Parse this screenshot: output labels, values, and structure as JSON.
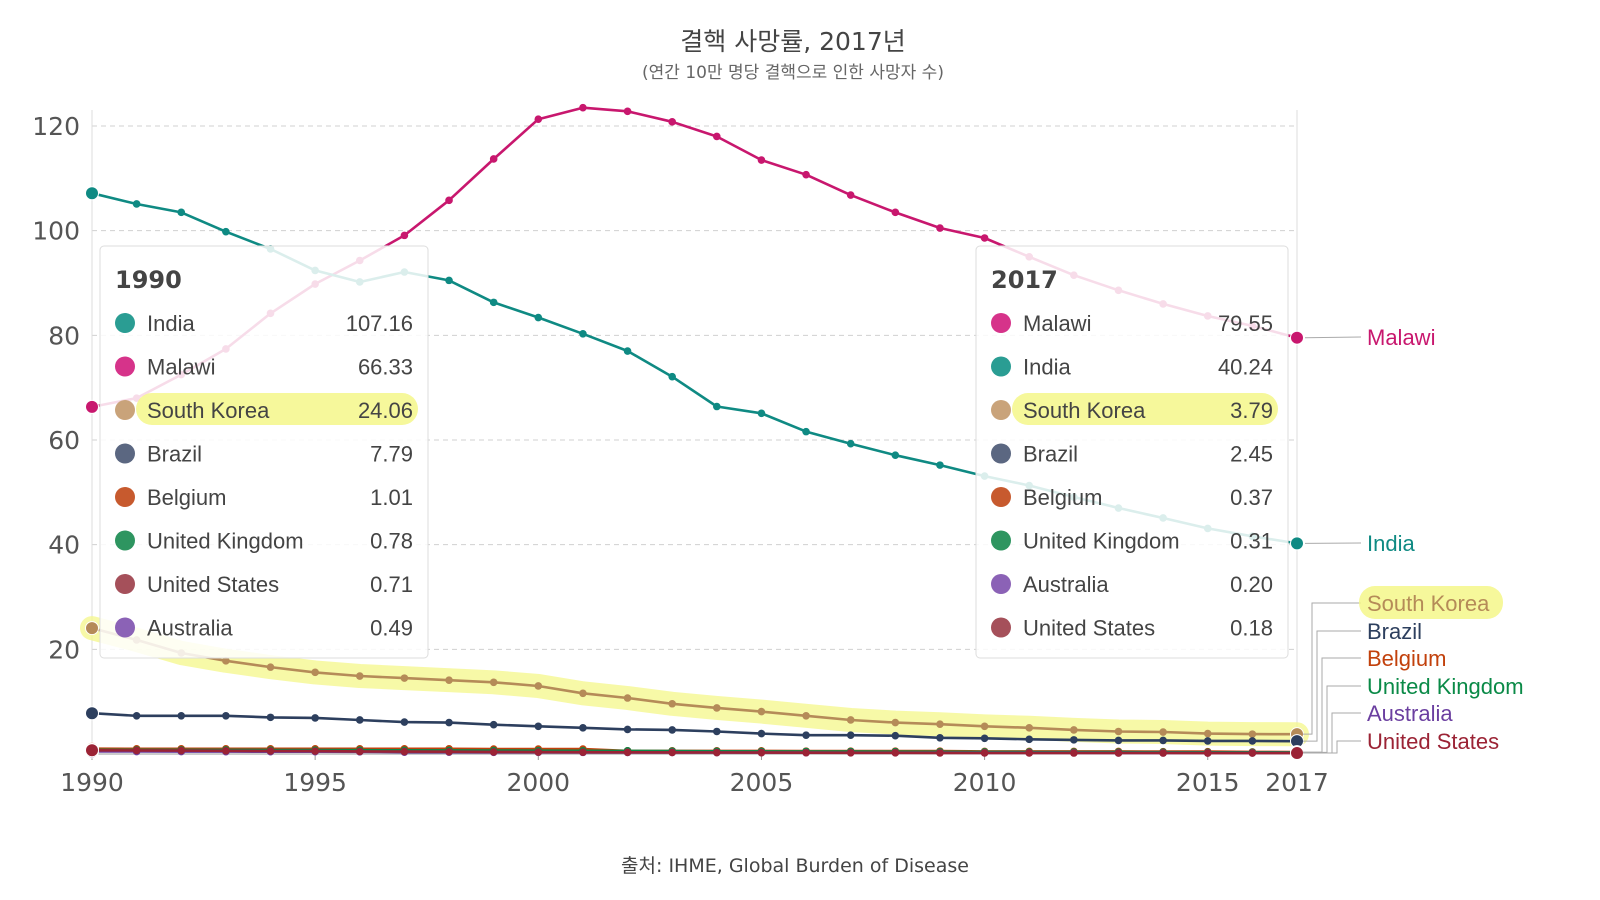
{
  "chart_data": {
    "type": "line",
    "title": "결핵 사망률, 2017년",
    "subtitle": "(연간 10만 명당  결핵으로 인한 사망자 수)",
    "source": "출처: IHME, Global Burden of Disease",
    "x_range": [
      1990,
      2017
    ],
    "y_range": [
      0,
      125
    ],
    "x_ticks": [
      "1990",
      "1995",
      "2000",
      "2005",
      "2010",
      "2015",
      "2017"
    ],
    "y_ticks": [
      "20",
      "40",
      "60",
      "80",
      "100",
      "120"
    ],
    "years": [
      1990,
      1991,
      1992,
      1993,
      1994,
      1995,
      1996,
      1997,
      1998,
      1999,
      2000,
      2001,
      2002,
      2003,
      2004,
      2005,
      2006,
      2007,
      2008,
      2009,
      2010,
      2011,
      2012,
      2013,
      2014,
      2015,
      2016,
      2017
    ],
    "series": [
      {
        "name": "Malawi",
        "color": "#c8176e",
        "label": "Malawi",
        "values": [
          66.33,
          68.0,
          72.5,
          77.4,
          84.2,
          89.8,
          94.3,
          99.1,
          105.8,
          113.7,
          121.3,
          123.5,
          122.8,
          120.8,
          118.0,
          113.5,
          110.7,
          106.8,
          103.5,
          100.5,
          98.6,
          95.0,
          91.5,
          88.6,
          86.0,
          83.7,
          81.8,
          79.55
        ]
      },
      {
        "name": "India",
        "color": "#0f8a83",
        "label": "India",
        "values": [
          107.16,
          105.1,
          103.5,
          99.8,
          96.5,
          92.4,
          90.2,
          92.1,
          90.5,
          86.3,
          83.4,
          80.3,
          77.0,
          72.1,
          66.4,
          65.1,
          61.6,
          59.3,
          57.1,
          55.2,
          53.1,
          51.3,
          49.1,
          47.0,
          45.1,
          43.1,
          41.6,
          40.24
        ]
      },
      {
        "name": "South Korea",
        "color": "#b58b58",
        "label": "South Korea",
        "values": [
          24.06,
          21.8,
          19.3,
          17.8,
          16.6,
          15.6,
          14.9,
          14.5,
          14.1,
          13.7,
          13.0,
          11.6,
          10.7,
          9.6,
          8.8,
          8.1,
          7.3,
          6.5,
          6.0,
          5.7,
          5.3,
          5.0,
          4.6,
          4.3,
          4.2,
          3.9,
          3.8,
          3.79
        ]
      },
      {
        "name": "Brazil",
        "color": "#2d3f5e",
        "label": "Brazil",
        "values": [
          7.79,
          7.3,
          7.3,
          7.3,
          7.0,
          6.9,
          6.5,
          6.1,
          6.0,
          5.6,
          5.3,
          5.0,
          4.7,
          4.6,
          4.3,
          3.9,
          3.6,
          3.6,
          3.5,
          3.1,
          3.0,
          2.8,
          2.7,
          2.6,
          2.6,
          2.5,
          2.5,
          2.45
        ]
      },
      {
        "name": "Belgium",
        "color": "#c2410c",
        "label": "Belgium",
        "values": [
          1.01,
          1.0,
          1.0,
          1.0,
          1.0,
          1.0,
          1.0,
          1.0,
          1.0,
          0.95,
          0.95,
          0.95,
          0.6,
          0.6,
          0.6,
          0.6,
          0.55,
          0.55,
          0.55,
          0.55,
          0.5,
          0.5,
          0.5,
          0.5,
          0.45,
          0.45,
          0.4,
          0.37
        ]
      },
      {
        "name": "United Kingdom",
        "color": "#0a8a47",
        "label": "United Kingdom",
        "values": [
          0.78,
          0.78,
          0.78,
          0.78,
          0.76,
          0.74,
          0.72,
          0.7,
          0.68,
          0.66,
          0.64,
          0.62,
          0.6,
          0.55,
          0.52,
          0.5,
          0.48,
          0.46,
          0.44,
          0.42,
          0.4,
          0.38,
          0.37,
          0.36,
          0.35,
          0.33,
          0.32,
          0.31
        ]
      },
      {
        "name": "Australia",
        "color": "#6b3fa0",
        "label": "Australia",
        "values": [
          0.49,
          0.47,
          0.46,
          0.45,
          0.44,
          0.43,
          0.42,
          0.35,
          0.34,
          0.33,
          0.32,
          0.31,
          0.3,
          0.29,
          0.28,
          0.27,
          0.26,
          0.25,
          0.25,
          0.24,
          0.23,
          0.22,
          0.22,
          0.21,
          0.21,
          0.2,
          0.2,
          0.2
        ]
      },
      {
        "name": "United States",
        "color": "#9b2335",
        "label": "United States",
        "values": [
          0.71,
          0.68,
          0.65,
          0.62,
          0.58,
          0.55,
          0.5,
          0.46,
          0.43,
          0.4,
          0.37,
          0.35,
          0.33,
          0.3,
          0.28,
          0.26,
          0.24,
          0.23,
          0.22,
          0.21,
          0.2,
          0.2,
          0.19,
          0.19,
          0.19,
          0.18,
          0.18,
          0.18
        ]
      }
    ],
    "highlight_series": "South Korea",
    "tooltip_1990": {
      "year": "1990",
      "rows": [
        {
          "name": "India",
          "value": "107.16",
          "color": "#2a9d93"
        },
        {
          "name": "Malawi",
          "value": "66.33",
          "color": "#d6338a"
        },
        {
          "name": "South Korea",
          "value": "24.06",
          "color": "#c9a37a"
        },
        {
          "name": "Brazil",
          "value": "7.79",
          "color": "#5b6781"
        },
        {
          "name": "Belgium",
          "value": "1.01",
          "color": "#c75a2e"
        },
        {
          "name": "United Kingdom",
          "value": "0.78",
          "color": "#2e9560"
        },
        {
          "name": "United States",
          "value": "0.71",
          "color": "#a5505a"
        },
        {
          "name": "Australia",
          "value": "0.49",
          "color": "#8b62b6"
        }
      ]
    },
    "tooltip_2017": {
      "year": "2017",
      "rows": [
        {
          "name": "Malawi",
          "value": "79.55",
          "color": "#d6338a"
        },
        {
          "name": "India",
          "value": "40.24",
          "color": "#2a9d93"
        },
        {
          "name": "South Korea",
          "value": "3.79",
          "color": "#c9a37a"
        },
        {
          "name": "Brazil",
          "value": "2.45",
          "color": "#5b6781"
        },
        {
          "name": "Belgium",
          "value": "0.37",
          "color": "#c75a2e"
        },
        {
          "name": "United Kingdom",
          "value": "0.31",
          "color": "#2e9560"
        },
        {
          "name": "Australia",
          "value": "0.20",
          "color": "#8b62b6"
        },
        {
          "name": "United States",
          "value": "0.18",
          "color": "#a5505a"
        }
      ]
    }
  }
}
